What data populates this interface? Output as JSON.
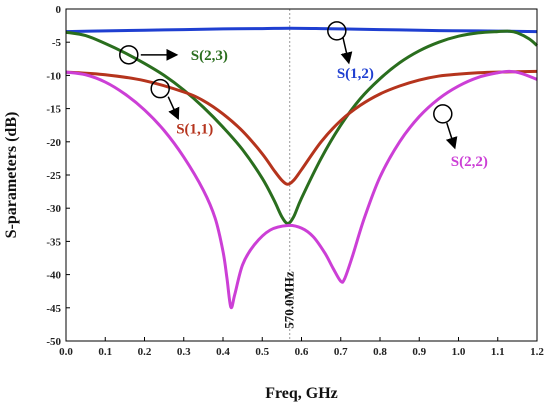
{
  "chart_data": {
    "type": "line",
    "xlabel": "Freq, GHz",
    "ylabel": "S-parameters (dB)",
    "xlim": [
      0.0,
      1.2
    ],
    "ylim": [
      -50,
      0
    ],
    "x_ticks": [
      "0.0",
      "0.1",
      "0.2",
      "0.3",
      "0.4",
      "0.5",
      "0.6",
      "0.7",
      "0.8",
      "0.9",
      "1.0",
      "1.1",
      "1.2"
    ],
    "y_ticks": [
      "0",
      "-5",
      "-10",
      "-15",
      "-20",
      "-25",
      "-30",
      "-35",
      "-40",
      "-45",
      "-50"
    ],
    "grid": false,
    "marker": {
      "x": 0.57,
      "label": "570.0MHz"
    },
    "series": [
      {
        "name": "S(1,2)",
        "color": "#1f3fd1",
        "points": [
          [
            0.0,
            -3.4
          ],
          [
            0.1,
            -3.3
          ],
          [
            0.2,
            -3.2
          ],
          [
            0.3,
            -3.1
          ],
          [
            0.4,
            -3.0
          ],
          [
            0.5,
            -2.95
          ],
          [
            0.57,
            -2.9
          ],
          [
            0.65,
            -2.95
          ],
          [
            0.75,
            -3.05
          ],
          [
            0.85,
            -3.15
          ],
          [
            0.95,
            -3.25
          ],
          [
            1.05,
            -3.3
          ],
          [
            1.13,
            -3.35
          ],
          [
            1.2,
            -3.4
          ]
        ]
      },
      {
        "name": "S(2,3)",
        "color": "#2a6e1e",
        "points": [
          [
            0.0,
            -3.5
          ],
          [
            0.05,
            -4.0
          ],
          [
            0.1,
            -5.2
          ],
          [
            0.15,
            -6.6
          ],
          [
            0.2,
            -8.2
          ],
          [
            0.25,
            -10.0
          ],
          [
            0.3,
            -12.2
          ],
          [
            0.35,
            -14.8
          ],
          [
            0.4,
            -17.8
          ],
          [
            0.45,
            -21.2
          ],
          [
            0.5,
            -25.5
          ],
          [
            0.53,
            -28.8
          ],
          [
            0.55,
            -31.3
          ],
          [
            0.565,
            -32.3
          ],
          [
            0.58,
            -31.3
          ],
          [
            0.6,
            -28.5
          ],
          [
            0.65,
            -22.5
          ],
          [
            0.7,
            -17.5
          ],
          [
            0.75,
            -13.5
          ],
          [
            0.8,
            -10.5
          ],
          [
            0.85,
            -8.1
          ],
          [
            0.9,
            -6.3
          ],
          [
            0.95,
            -5.0
          ],
          [
            1.0,
            -4.1
          ],
          [
            1.05,
            -3.6
          ],
          [
            1.1,
            -3.4
          ],
          [
            1.13,
            -3.35
          ],
          [
            1.15,
            -3.6
          ],
          [
            1.18,
            -4.5
          ],
          [
            1.2,
            -5.5
          ]
        ]
      },
      {
        "name": "S(1,1)",
        "color": "#b5341d",
        "points": [
          [
            0.0,
            -9.5
          ],
          [
            0.1,
            -9.9
          ],
          [
            0.2,
            -10.8
          ],
          [
            0.3,
            -12.5
          ],
          [
            0.35,
            -13.8
          ],
          [
            0.4,
            -15.8
          ],
          [
            0.45,
            -18.4
          ],
          [
            0.5,
            -21.8
          ],
          [
            0.53,
            -24.3
          ],
          [
            0.55,
            -25.8
          ],
          [
            0.565,
            -26.4
          ],
          [
            0.58,
            -25.8
          ],
          [
            0.6,
            -24.2
          ],
          [
            0.65,
            -20.0
          ],
          [
            0.7,
            -16.8
          ],
          [
            0.75,
            -14.5
          ],
          [
            0.8,
            -12.8
          ],
          [
            0.85,
            -11.6
          ],
          [
            0.9,
            -10.7
          ],
          [
            0.95,
            -10.1
          ],
          [
            1.0,
            -9.8
          ],
          [
            1.05,
            -9.6
          ],
          [
            1.1,
            -9.5
          ],
          [
            1.2,
            -9.4
          ]
        ]
      },
      {
        "name": "S(2,2)",
        "color": "#cc3fd6",
        "points": [
          [
            0.0,
            -9.5
          ],
          [
            0.05,
            -9.9
          ],
          [
            0.1,
            -11.0
          ],
          [
            0.15,
            -12.8
          ],
          [
            0.2,
            -15.2
          ],
          [
            0.25,
            -18.3
          ],
          [
            0.3,
            -22.3
          ],
          [
            0.35,
            -27.3
          ],
          [
            0.38,
            -31.5
          ],
          [
            0.4,
            -36.5
          ],
          [
            0.41,
            -40.5
          ],
          [
            0.42,
            -44.9
          ],
          [
            0.43,
            -43.0
          ],
          [
            0.45,
            -38.5
          ],
          [
            0.48,
            -35.5
          ],
          [
            0.52,
            -33.3
          ],
          [
            0.565,
            -32.6
          ],
          [
            0.6,
            -33.0
          ],
          [
            0.63,
            -34.3
          ],
          [
            0.66,
            -36.8
          ],
          [
            0.68,
            -39.0
          ],
          [
            0.7,
            -41.0
          ],
          [
            0.71,
            -40.6
          ],
          [
            0.73,
            -37.2
          ],
          [
            0.76,
            -31.5
          ],
          [
            0.8,
            -25.3
          ],
          [
            0.85,
            -20.0
          ],
          [
            0.9,
            -16.2
          ],
          [
            0.95,
            -13.5
          ],
          [
            1.0,
            -11.6
          ],
          [
            1.05,
            -10.3
          ],
          [
            1.1,
            -9.6
          ],
          [
            1.13,
            -9.4
          ],
          [
            1.16,
            -9.7
          ],
          [
            1.2,
            -10.6
          ]
        ]
      }
    ],
    "annotations": [
      {
        "label": "S(1,2)",
        "color": "#1f3fd1",
        "at": [
          0.69,
          -3.3
        ]
      },
      {
        "label": "S(2,3)",
        "color": "#2a6e1e",
        "at": [
          0.16,
          -6.9
        ]
      },
      {
        "label": "S(1,1)",
        "color": "#b5341d",
        "at": [
          0.24,
          -12.0
        ]
      },
      {
        "label": "S(2,2)",
        "color": "#cc3fd6",
        "at": [
          0.96,
          -15.8
        ]
      }
    ]
  }
}
